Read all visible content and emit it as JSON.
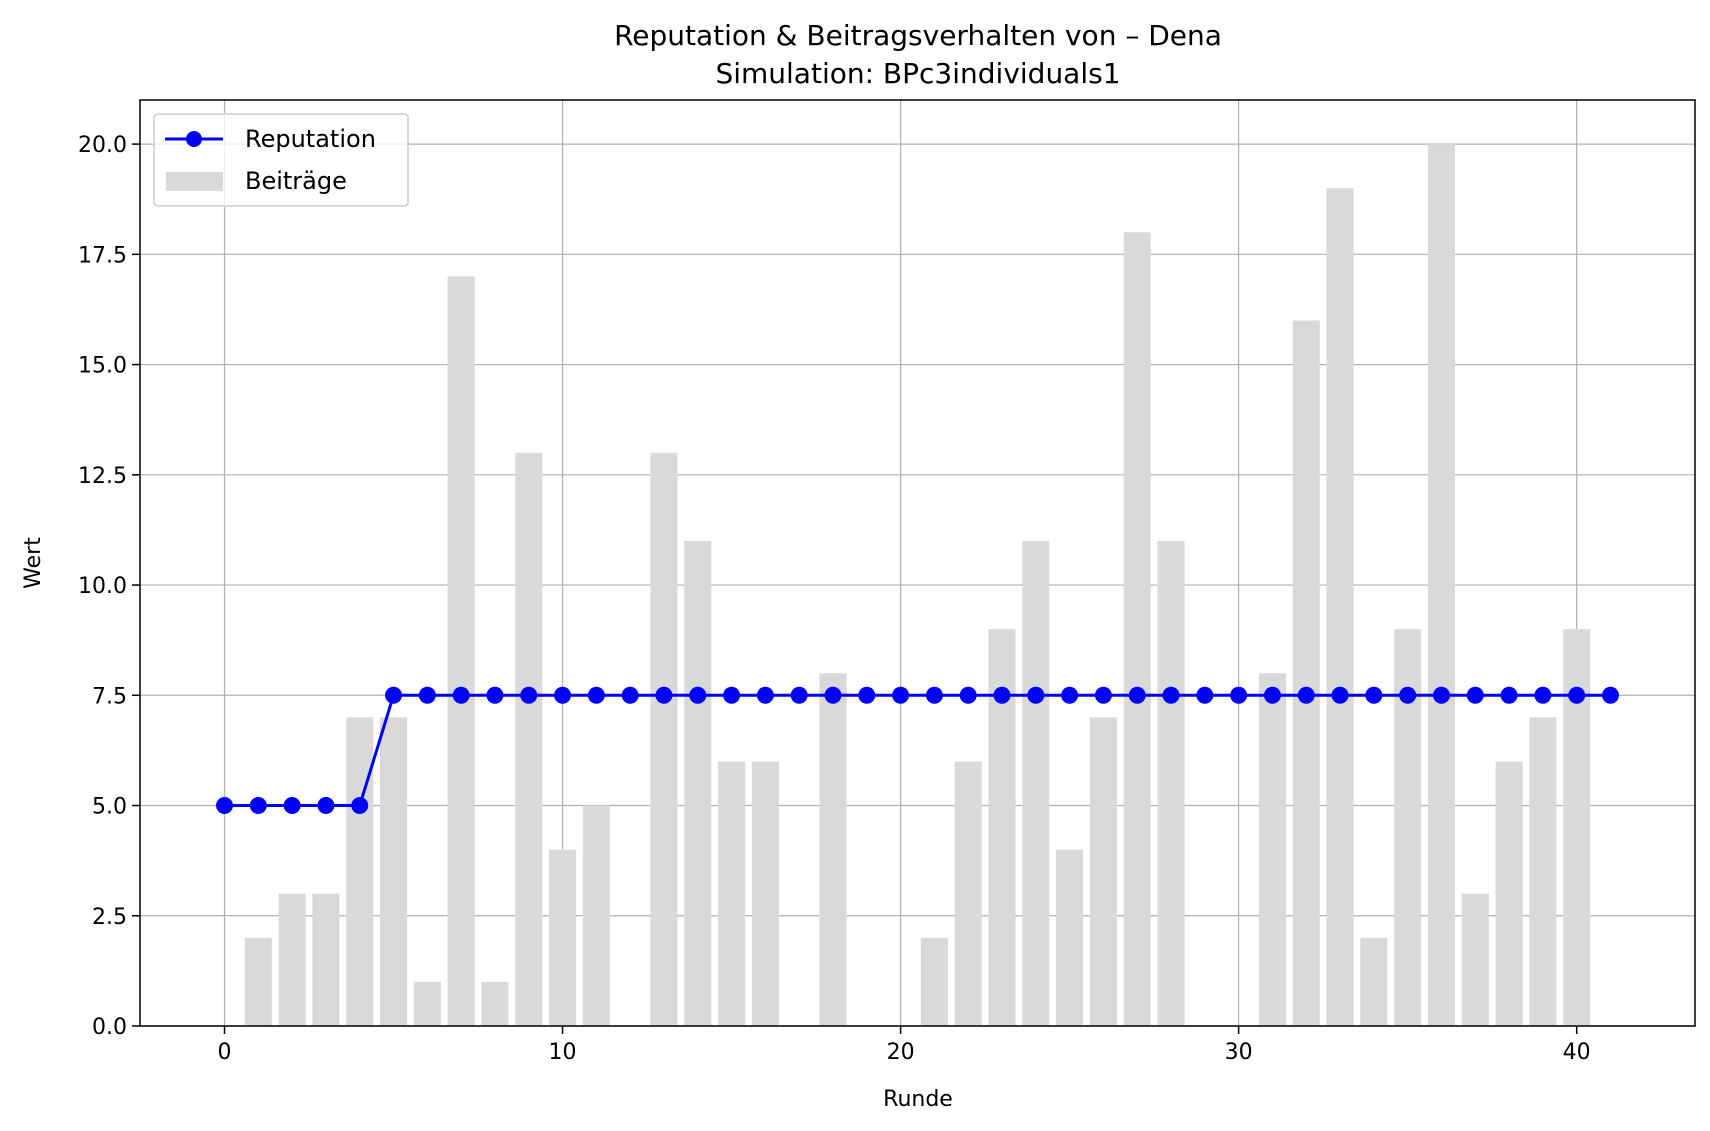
{
  "chart_data": {
    "type": "bar+line",
    "title": "Reputation & Beitragsverhalten von – Dena",
    "subtitle": "Simulation: BPc3individuals1",
    "xlabel": "Runde",
    "ylabel": "Wert",
    "xlim": [
      -2.5,
      43.5
    ],
    "ylim": [
      0,
      21
    ],
    "xticks": [
      0,
      10,
      20,
      30,
      40
    ],
    "xtick_labels": [
      "0",
      "10",
      "20",
      "30",
      "40"
    ],
    "yticks": [
      0,
      2.5,
      5,
      7.5,
      10,
      12.5,
      15,
      17.5,
      20
    ],
    "ytick_labels": [
      "0.0",
      "2.5",
      "5.0",
      "7.5",
      "10.0",
      "12.5",
      "15.0",
      "17.5",
      "20.0"
    ],
    "grid": true,
    "legend": {
      "placement": "top-left",
      "entries": [
        "Reputation",
        "Beiträge"
      ]
    },
    "series": [
      {
        "name": "Beiträge",
        "kind": "bar",
        "color": "#d9d9d9",
        "x": [
          1,
          2,
          3,
          4,
          5,
          6,
          7,
          8,
          9,
          10,
          11,
          13,
          14,
          15,
          16,
          18,
          21,
          22,
          23,
          24,
          25,
          26,
          27,
          28,
          31,
          32,
          33,
          34,
          35,
          36,
          37,
          38,
          39,
          40
        ],
        "values": [
          2,
          3,
          3,
          7,
          7,
          1,
          17,
          1,
          13,
          4,
          5,
          13,
          11,
          6,
          6,
          8,
          2,
          6,
          9,
          11,
          4,
          7,
          18,
          11,
          8,
          16,
          19,
          2,
          9,
          20,
          3,
          6,
          7,
          9
        ]
      },
      {
        "name": "Reputation",
        "kind": "line",
        "color": "#0000ff",
        "x": [
          0,
          1,
          2,
          3,
          4,
          5,
          6,
          7,
          8,
          9,
          10,
          11,
          12,
          13,
          14,
          15,
          16,
          17,
          18,
          19,
          20,
          21,
          22,
          23,
          24,
          25,
          26,
          27,
          28,
          29,
          30,
          31,
          32,
          33,
          34,
          35,
          36,
          37,
          38,
          39,
          40,
          41
        ],
        "values": [
          5,
          5,
          5,
          5,
          5,
          7.5,
          7.5,
          7.5,
          7.5,
          7.5,
          7.5,
          7.5,
          7.5,
          7.5,
          7.5,
          7.5,
          7.5,
          7.5,
          7.5,
          7.5,
          7.5,
          7.5,
          7.5,
          7.5,
          7.5,
          7.5,
          7.5,
          7.5,
          7.5,
          7.5,
          7.5,
          7.5,
          7.5,
          7.5,
          7.5,
          7.5,
          7.5,
          7.5,
          7.5,
          7.5,
          7.5,
          7.5
        ]
      }
    ]
  }
}
